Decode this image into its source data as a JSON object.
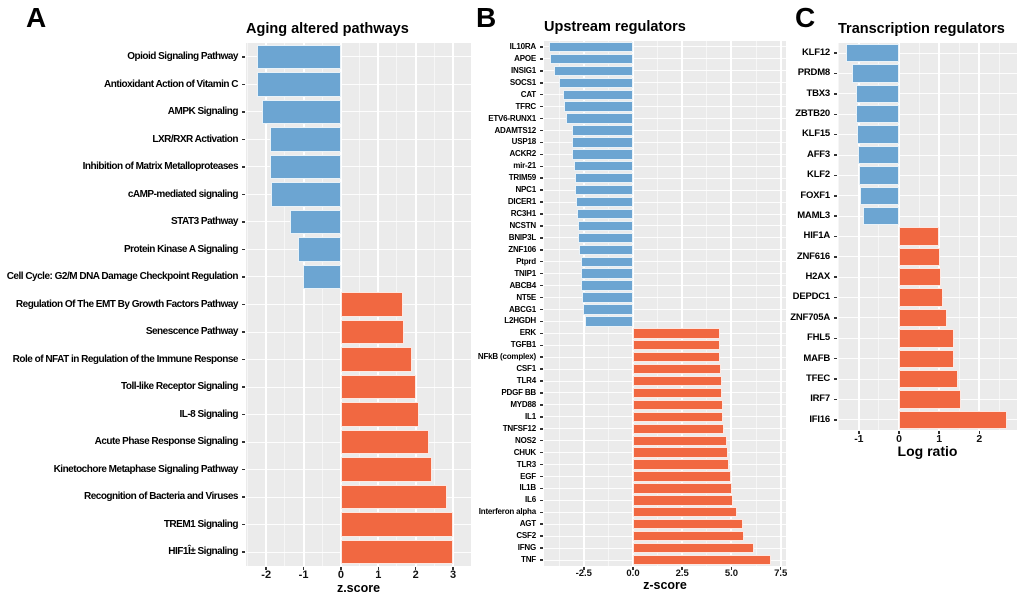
{
  "colors": {
    "negative_bar": "#6CA5D2",
    "positive_bar": "#F16841",
    "panel_background": "#EBEBEB",
    "gridline": "#FFFFFF"
  },
  "chart_data": [
    {
      "type": "bar",
      "orientation": "horizontal",
      "panel_label": "A",
      "title": "Aging altered pathways",
      "xlabel": "z.score",
      "axis": {
        "xmin": -2.54,
        "xmax": 3.48,
        "grid": true,
        "major_ticks": [
          {
            "v": -2,
            "label": "-2"
          },
          {
            "v": -1,
            "label": "-1"
          },
          {
            "v": 0,
            "label": "0"
          },
          {
            "v": 1,
            "label": "1"
          },
          {
            "v": 2,
            "label": "2"
          },
          {
            "v": 3,
            "label": "3"
          }
        ],
        "minor_ticks": [
          -2.5,
          -1.5,
          -0.5,
          0.5,
          1.5,
          2.5
        ]
      },
      "bars": [
        {
          "label": "Opioid Signaling Pathway",
          "value": -2.25
        },
        {
          "label": "Antioxidant Action of Vitamin C",
          "value": -2.25
        },
        {
          "label": "AMPK Signaling",
          "value": -2.1
        },
        {
          "label": "LXR/RXR Activation",
          "value": -1.9
        },
        {
          "label": "Inhibition of Matrix Metalloproteases",
          "value": -1.9
        },
        {
          "label": "cAMP-mediated signaling",
          "value": -1.88
        },
        {
          "label": "STAT3 Pathway",
          "value": -1.35
        },
        {
          "label": "Protein Kinase A Signaling",
          "value": -1.15
        },
        {
          "label": "Cell Cycle: G2/M DNA Damage Checkpoint Regulation",
          "value": -1.02
        },
        {
          "label": "Regulation Of The EMT By Growth Factors Pathway",
          "value": 1.65
        },
        {
          "label": "Senescence Pathway",
          "value": 1.68
        },
        {
          "label": "Role of NFAT in Regulation of the Immune Response",
          "value": 1.9
        },
        {
          "label": "Toll-like Receptor Signaling",
          "value": 2.0
        },
        {
          "label": "IL-8 Signaling",
          "value": 2.1
        },
        {
          "label": "Acute Phase Response Signaling",
          "value": 2.35
        },
        {
          "label": "Kinetochore Metaphase Signaling Pathway",
          "value": 2.45
        },
        {
          "label": "Recognition of Bacteria and Viruses",
          "value": 2.85
        },
        {
          "label": "TREM1 Signaling",
          "value": 3.0
        },
        {
          "label": "HIF1Î± Signaling",
          "value": 3.0
        }
      ]
    },
    {
      "type": "bar",
      "orientation": "horizontal",
      "panel_label": "B",
      "title": "Upstream regulators",
      "xlabel": "z-score",
      "axis": {
        "xmin": -4.52,
        "xmax": 7.77,
        "grid": true,
        "major_ticks": [
          {
            "v": -2.5,
            "label": "-2.5"
          },
          {
            "v": 0,
            "label": "0.0"
          },
          {
            "v": 2.5,
            "label": "2.5"
          },
          {
            "v": 5,
            "label": "5.0"
          },
          {
            "v": 7.5,
            "label": "7.5"
          }
        ],
        "minor_ticks": [
          -3.75,
          -1.25,
          1.25,
          3.75,
          6.25
        ]
      },
      "bars": [
        {
          "label": "IL10RA",
          "value": -4.25
        },
        {
          "label": "APOE",
          "value": -4.2
        },
        {
          "label": "INSIG1",
          "value": -4.0
        },
        {
          "label": "SOCS1",
          "value": -3.75
        },
        {
          "label": "CAT",
          "value": -3.55
        },
        {
          "label": "TFRC",
          "value": -3.5
        },
        {
          "label": "ETV6-RUNX1",
          "value": -3.4
        },
        {
          "label": "ADAMTS12",
          "value": -3.12
        },
        {
          "label": "USP18",
          "value": -3.1
        },
        {
          "label": "ACKR2",
          "value": -3.08
        },
        {
          "label": "mir-21",
          "value": -3.0
        },
        {
          "label": "TRIM59",
          "value": -2.97
        },
        {
          "label": "NPC1",
          "value": -2.93
        },
        {
          "label": "DICER1",
          "value": -2.9
        },
        {
          "label": "RC3H1",
          "value": -2.82
        },
        {
          "label": "NCSTN",
          "value": -2.8
        },
        {
          "label": "BNIP3L",
          "value": -2.78
        },
        {
          "label": "ZNF106",
          "value": -2.75
        },
        {
          "label": "Ptprd",
          "value": -2.65
        },
        {
          "label": "TNIP1",
          "value": -2.64
        },
        {
          "label": "ABCB4",
          "value": -2.62
        },
        {
          "label": "NT5E",
          "value": -2.58
        },
        {
          "label": "ABCG1",
          "value": -2.55
        },
        {
          "label": "L2HGDH",
          "value": -2.45
        },
        {
          "label": "ERK",
          "value": 4.4
        },
        {
          "label": "TGFB1",
          "value": 4.4
        },
        {
          "label": "NFkB (complex)",
          "value": 4.42
        },
        {
          "label": "CSF1",
          "value": 4.45
        },
        {
          "label": "TLR4",
          "value": 4.5
        },
        {
          "label": "PDGF BB",
          "value": 4.53
        },
        {
          "label": "MYD88",
          "value": 4.55
        },
        {
          "label": "IL1",
          "value": 4.55
        },
        {
          "label": "TNFSF12",
          "value": 4.6
        },
        {
          "label": "NOS2",
          "value": 4.75
        },
        {
          "label": "CHUK",
          "value": 4.82
        },
        {
          "label": "TLR3",
          "value": 4.85
        },
        {
          "label": "EGF",
          "value": 5.0
        },
        {
          "label": "IL1B",
          "value": 5.05
        },
        {
          "label": "IL6",
          "value": 5.1
        },
        {
          "label": "Interferon alpha",
          "value": 5.3
        },
        {
          "label": "AGT",
          "value": 5.6
        },
        {
          "label": "CSF2",
          "value": 5.65
        },
        {
          "label": "IFNG",
          "value": 6.15
        },
        {
          "label": "TNF",
          "value": 7.0
        }
      ]
    },
    {
      "type": "bar",
      "orientation": "horizontal",
      "panel_label": "C",
      "title": "Transcription regulators",
      "xlabel": "Log ratio",
      "axis": {
        "xmin": -1.52,
        "xmax": 2.94,
        "grid": true,
        "major_ticks": [
          {
            "v": -1,
            "label": "-1"
          },
          {
            "v": 0,
            "label": "0"
          },
          {
            "v": 1,
            "label": "1"
          },
          {
            "v": 2,
            "label": "2"
          }
        ],
        "minor_ticks": [
          -1.5,
          -0.5,
          0.5,
          1.5,
          2.5
        ]
      },
      "bars": [
        {
          "label": "KLF12",
          "value": -1.32
        },
        {
          "label": "PRDM8",
          "value": -1.17
        },
        {
          "label": "TBX3",
          "value": -1.07
        },
        {
          "label": "ZBTB20",
          "value": -1.06
        },
        {
          "label": "KLF15",
          "value": -1.05
        },
        {
          "label": "AFF3",
          "value": -1.02
        },
        {
          "label": "KLF2",
          "value": -1.0
        },
        {
          "label": "FOXF1",
          "value": -0.97
        },
        {
          "label": "MAML3",
          "value": -0.9
        },
        {
          "label": "HIF1A",
          "value": 1.0
        },
        {
          "label": "ZNF616",
          "value": 1.02
        },
        {
          "label": "H2AX",
          "value": 1.05
        },
        {
          "label": "DEPDC1",
          "value": 1.1
        },
        {
          "label": "ZNF705A",
          "value": 1.2
        },
        {
          "label": "FHL5",
          "value": 1.36
        },
        {
          "label": "MAFB",
          "value": 1.38
        },
        {
          "label": "TFEC",
          "value": 1.47
        },
        {
          "label": "IRF7",
          "value": 1.55
        },
        {
          "label": "IFI16",
          "value": 2.68
        }
      ]
    }
  ]
}
